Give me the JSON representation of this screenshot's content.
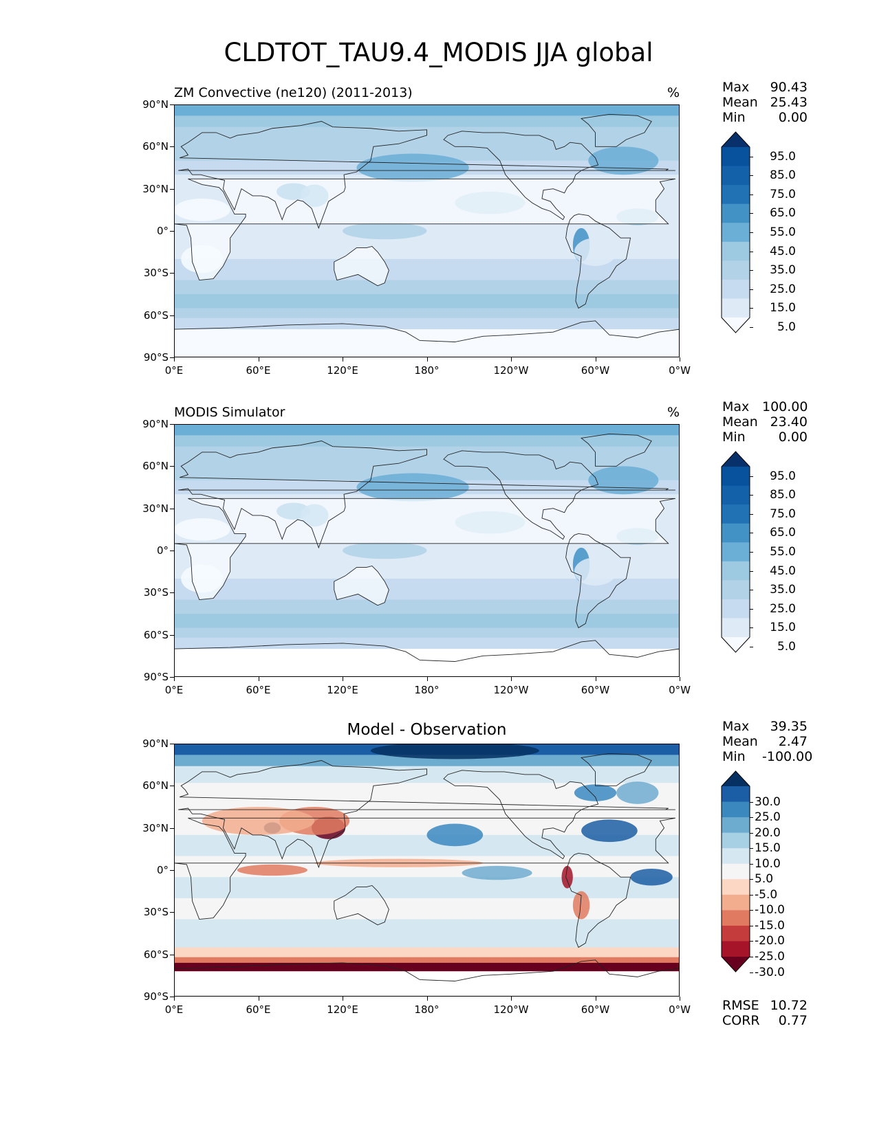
{
  "title": "CLDTOT_TAU9.4_MODIS JJA global",
  "lat_ticks": [
    "90°N",
    "60°N",
    "30°N",
    "0°",
    "30°S",
    "60°S",
    "90°S"
  ],
  "lon_ticks": [
    "0°E",
    "60°E",
    "120°E",
    "180°",
    "120°W",
    "60°W",
    "0°W"
  ],
  "panels": [
    {
      "left_title": "ZM Convective (ne120) (2011-2013)",
      "center_title": "",
      "unit": "%",
      "stats": [
        {
          "label": "Max",
          "value": "90.43"
        },
        {
          "label": "Mean",
          "value": "25.43"
        },
        {
          "label": "Min",
          "value": "0.00"
        }
      ],
      "colorbar": {
        "labels": [
          "95.0",
          "85.0",
          "75.0",
          "65.0",
          "55.0",
          "45.0",
          "35.0",
          "25.0",
          "15.0",
          "5.0"
        ],
        "colors": [
          "#f7fbff",
          "#deebf7",
          "#c6dbef",
          "#b2d2e8",
          "#9ecae1",
          "#6baed6",
          "#4292c6",
          "#2171b5",
          "#1361a9",
          "#08519c",
          "#08306b"
        ]
      }
    },
    {
      "left_title": "MODIS Simulator",
      "center_title": "",
      "unit": "%",
      "stats": [
        {
          "label": "Max",
          "value": "100.00"
        },
        {
          "label": "Mean",
          "value": "23.40"
        },
        {
          "label": "Min",
          "value": "0.00"
        }
      ],
      "colorbar": {
        "labels": [
          "95.0",
          "85.0",
          "75.0",
          "65.0",
          "55.0",
          "45.0",
          "35.0",
          "25.0",
          "15.0",
          "5.0"
        ],
        "colors": [
          "#f7fbff",
          "#deebf7",
          "#c6dbef",
          "#b2d2e8",
          "#9ecae1",
          "#6baed6",
          "#4292c6",
          "#2171b5",
          "#1361a9",
          "#08519c",
          "#08306b"
        ]
      }
    },
    {
      "left_title": "",
      "center_title": "Model - Observation",
      "unit": "",
      "stats": [
        {
          "label": "Max",
          "value": "39.35"
        },
        {
          "label": "Mean",
          "value": "2.47"
        },
        {
          "label": "Min",
          "value": "-100.00"
        }
      ],
      "colorbar": {
        "labels": [
          "30.0",
          "25.0",
          "20.0",
          "15.0",
          "10.0",
          "5.0",
          "-5.0",
          "-10.0",
          "-15.0",
          "-20.0",
          "-25.0",
          "-30.0"
        ],
        "colors": [
          "#67001f",
          "#a51429",
          "#c43c3c",
          "#e07b62",
          "#f2ad8e",
          "#fbd7c4",
          "#f5f5f5",
          "#d5e7f0",
          "#a7d0e4",
          "#6eaccf",
          "#3b88bf",
          "#1c5ea5",
          "#053061"
        ]
      },
      "metrics": [
        {
          "label": "RMSE",
          "value": "10.72"
        },
        {
          "label": "CORR",
          "value": "0.77"
        }
      ]
    }
  ]
}
